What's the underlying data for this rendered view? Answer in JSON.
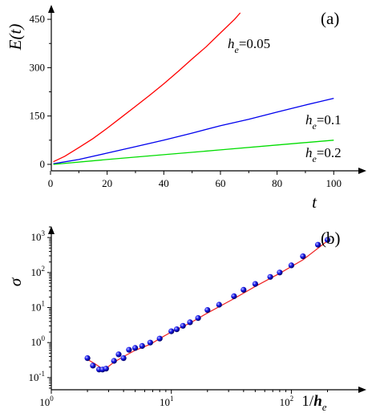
{
  "chart_data": [
    {
      "type": "line",
      "panel_label": "(a)",
      "xlabel": "t",
      "ylabel": "E(t)",
      "xlim": [
        0,
        107
      ],
      "ylim": [
        -20,
        485
      ],
      "xticks": [
        0,
        20,
        40,
        60,
        80,
        100
      ],
      "yticks": [
        0,
        150,
        300,
        450
      ],
      "series": [
        {
          "name": "h_e=0.05",
          "label_base": "h",
          "label_sub": "e",
          "label_value": "=0.05",
          "color": "#ff0000",
          "x": [
            1,
            5,
            10,
            15,
            20,
            25,
            30,
            35,
            40,
            45,
            50,
            55,
            60,
            65,
            67
          ],
          "y": [
            8,
            25,
            52,
            80,
            112,
            146,
            180,
            214,
            250,
            288,
            327,
            365,
            408,
            450,
            470
          ]
        },
        {
          "name": "h_e=0.1",
          "label_base": "h",
          "label_sub": "e",
          "label_value": "=0.1",
          "color": "#0000ee",
          "x": [
            1,
            10,
            20,
            30,
            40,
            50,
            60,
            70,
            80,
            90,
            100
          ],
          "y": [
            2,
            15,
            35,
            55,
            75,
            97,
            120,
            140,
            162,
            184,
            205
          ]
        },
        {
          "name": "h_e=0.2",
          "label_base": "h",
          "label_sub": "e",
          "label_value": "=0.2",
          "color": "#00dd00",
          "x": [
            1,
            20,
            40,
            60,
            80,
            100
          ],
          "y": [
            0,
            15,
            30,
            45,
            60,
            75
          ]
        }
      ]
    },
    {
      "type": "scatter",
      "panel_label": "(b)",
      "xlabel_base": "1/h",
      "xlabel_sub": "e",
      "ylabel": "σ",
      "xscale": "log",
      "yscale": "log",
      "xlim": [
        1,
        270
      ],
      "ylim": [
        0.045,
        2000
      ],
      "xticks": [
        1,
        10,
        100
      ],
      "xtick_labels": [
        {
          "base": "10",
          "exp": "0"
        },
        {
          "base": "10",
          "exp": "1"
        },
        {
          "base": "10",
          "exp": "2"
        }
      ],
      "yticks": [
        0.1,
        1,
        10,
        100,
        1000
      ],
      "ytick_labels": [
        {
          "base": "10",
          "exp": "-1"
        },
        {
          "base": "10",
          "exp": "0"
        },
        {
          "base": "10",
          "exp": "1"
        },
        {
          "base": "10",
          "exp": "2"
        },
        {
          "base": "10",
          "exp": "3"
        }
      ],
      "points": {
        "color": "#1a1aee",
        "x": [
          2.0,
          2.22,
          2.5,
          2.67,
          2.86,
          3.33,
          3.64,
          4.0,
          4.44,
          5.0,
          5.71,
          6.67,
          8.0,
          10.0,
          11.1,
          12.5,
          14.3,
          16.7,
          20.0,
          25.0,
          33.3,
          40.0,
          50.0,
          66.7,
          80.0,
          100.0,
          125.0,
          166.7,
          200.0
        ],
        "y": [
          0.36,
          0.22,
          0.17,
          0.17,
          0.18,
          0.3,
          0.46,
          0.36,
          0.62,
          0.7,
          0.8,
          1.0,
          1.3,
          2.1,
          2.4,
          3.0,
          3.8,
          5.0,
          8.5,
          12.0,
          21.0,
          32.0,
          47.0,
          75.0,
          100.0,
          160.0,
          290.0,
          620.0,
          850.0
        ]
      },
      "fit_line": {
        "color": "#ee2222",
        "x": [
          2.0,
          2.3,
          2.6,
          2.9,
          3.3,
          4.0,
          5.0,
          6.7,
          8.0,
          10.0,
          14.3,
          20.0,
          33.3,
          50.0,
          80.0,
          125.0,
          200.0
        ],
        "y": [
          0.33,
          0.25,
          0.19,
          0.19,
          0.27,
          0.4,
          0.6,
          0.9,
          1.3,
          2.0,
          3.6,
          7.0,
          18.0,
          40.0,
          95.0,
          230.0,
          800.0
        ]
      }
    }
  ]
}
